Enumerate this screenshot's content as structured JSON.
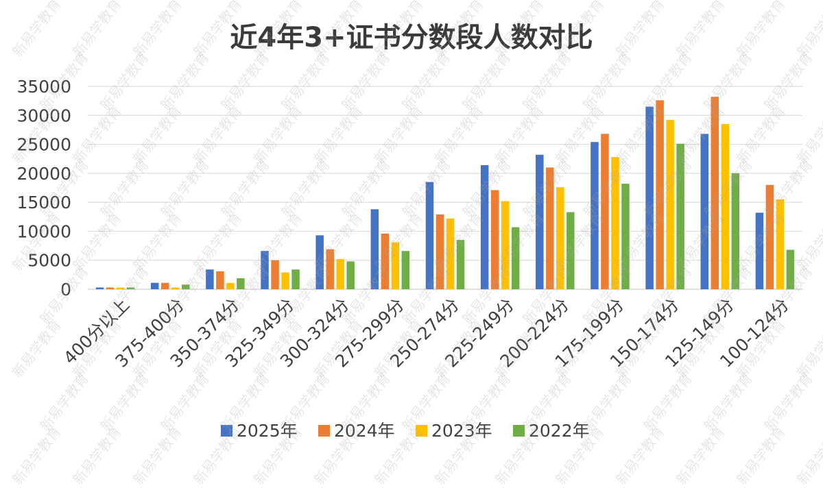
{
  "watermark": "新易学教育",
  "chart_data": {
    "type": "bar",
    "title": "近4年3+证书分数段人数对比",
    "categories": [
      "400分以上",
      "375-400分",
      "350-374分",
      "325-349分",
      "300-324分",
      "275-299分",
      "250-274分",
      "225-249分",
      "200-224分",
      "175-199分",
      "150-174分",
      "125-149分",
      "100-124分"
    ],
    "series": [
      {
        "name": "2025年",
        "color": "#4472C4",
        "values": [
          300,
          1100,
          3400,
          6600,
          9300,
          13800,
          18500,
          21400,
          23200,
          25400,
          31500,
          26800,
          13200
        ]
      },
      {
        "name": "2024年",
        "color": "#ED7D31",
        "values": [
          300,
          1100,
          3100,
          5000,
          6900,
          9600,
          12900,
          17100,
          21000,
          26800,
          32600,
          33200,
          18000
        ]
      },
      {
        "name": "2023年",
        "color": "#FFC000",
        "values": [
          300,
          300,
          1100,
          2900,
          5200,
          8100,
          12200,
          15200,
          17600,
          22800,
          29200,
          28500,
          15500
        ]
      },
      {
        "name": "2022年",
        "color": "#70AD47",
        "values": [
          300,
          800,
          1900,
          3400,
          4800,
          6600,
          8500,
          10700,
          13300,
          18200,
          25100,
          20000,
          6800
        ]
      }
    ],
    "y_ticks": [
      "0",
      "5000",
      "10000",
      "15000",
      "20000",
      "25000",
      "30000",
      "35000"
    ],
    "ylim": [
      0,
      35000
    ],
    "xlabel": "",
    "ylabel": "",
    "grid": true,
    "legend_position": "bottom"
  }
}
